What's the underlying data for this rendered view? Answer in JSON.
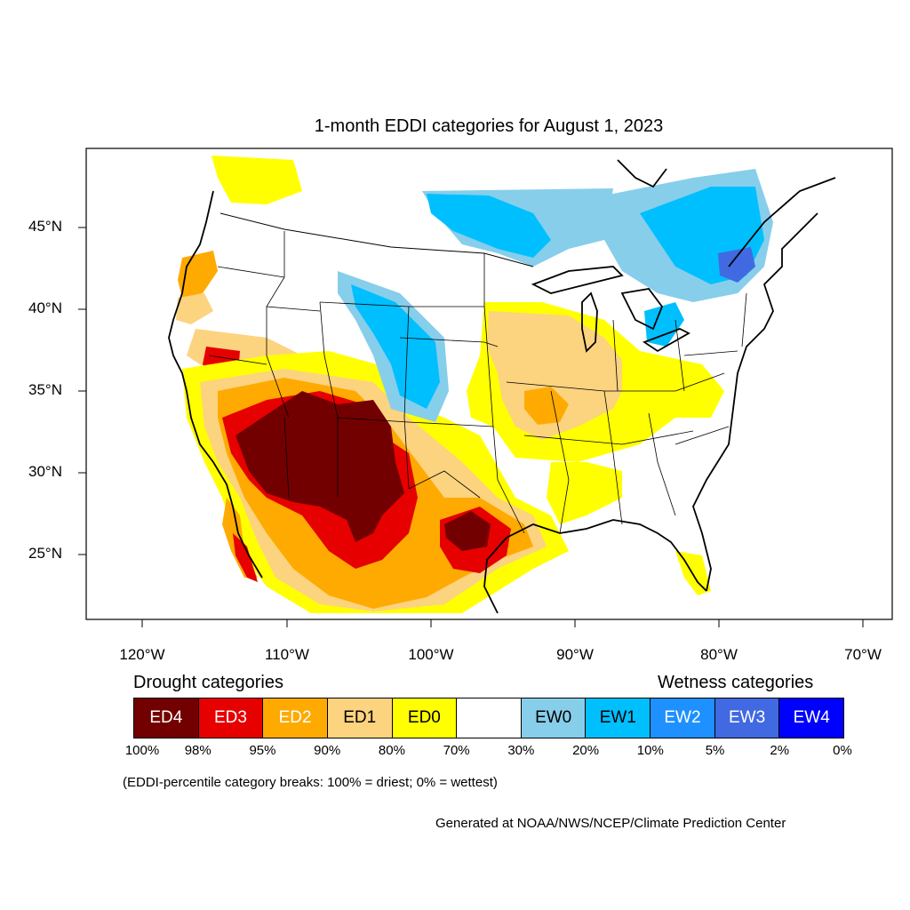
{
  "title": "1-month EDDI categories for August 1, 2023",
  "lat_labels": [
    "45°N",
    "40°N",
    "35°N",
    "30°N",
    "25°N"
  ],
  "lon_labels": [
    "120°W",
    "110°W",
    "100°W",
    "90°W",
    "80°W",
    "70°W"
  ],
  "legend": {
    "drought_heading": "Drought categories",
    "wetness_heading": "Wetness categories",
    "categories": [
      {
        "label": "ED4",
        "color": "#730000",
        "text_color": "#ffffff"
      },
      {
        "label": "ED3",
        "color": "#e60000",
        "text_color": "#ffffff"
      },
      {
        "label": "ED2",
        "color": "#ffaa00",
        "text_color": "#ffffff"
      },
      {
        "label": "ED1",
        "color": "#fcd37f",
        "text_color": "#000000"
      },
      {
        "label": "ED0",
        "color": "#ffff00",
        "text_color": "#000000"
      },
      {
        "label": "",
        "color": "#ffffff",
        "text_color": "#000000"
      },
      {
        "label": "EW0",
        "color": "#87ceeb",
        "text_color": "#000000"
      },
      {
        "label": "EW1",
        "color": "#00bfff",
        "text_color": "#000000"
      },
      {
        "label": "EW2",
        "color": "#1e90ff",
        "text_color": "#ffffff"
      },
      {
        "label": "EW3",
        "color": "#4169e1",
        "text_color": "#ffffff"
      },
      {
        "label": "EW4",
        "color": "#0000ff",
        "text_color": "#ffffff"
      }
    ],
    "breaks": [
      "100%",
      "98%",
      "95%",
      "90%",
      "80%",
      "70%",
      "30%",
      "20%",
      "10%",
      "5%",
      "2%",
      "0%"
    ]
  },
  "note": "(EDDI-percentile category breaks: 100% = driest; 0% = wettest)",
  "credit": "Generated at NOAA/NWS/NCEP/Climate Prediction Center"
}
